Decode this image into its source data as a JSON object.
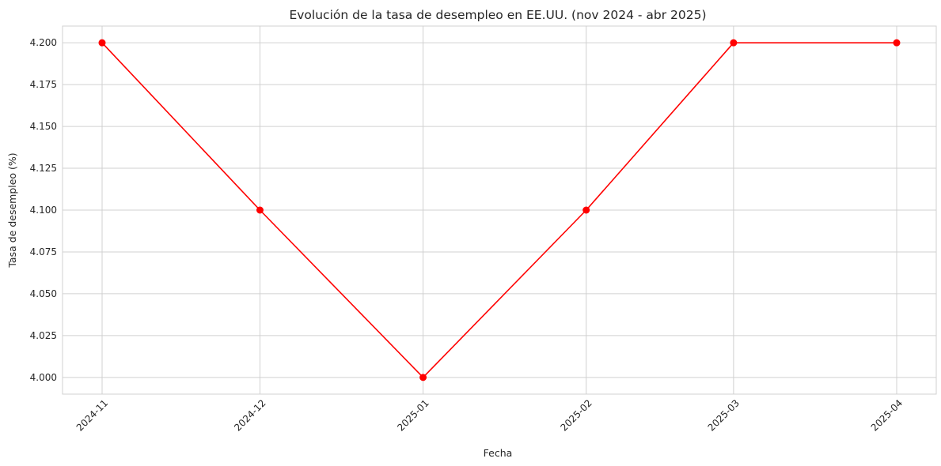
{
  "chart_data": {
    "type": "line",
    "title": "Evolución de la tasa de desempleo en EE.UU. (nov 2024 - abr 2025)",
    "xlabel": "Fecha",
    "ylabel": "Tasa de desempleo (%)",
    "x": [
      "2024-11-01",
      "2024-12-01",
      "2025-01-01",
      "2025-02-01",
      "2025-03-01",
      "2025-04-01"
    ],
    "x_tick_labels": [
      "2024-11",
      "2024-12",
      "2025-01",
      "2025-02",
      "2025-03",
      "2025-04"
    ],
    "y_ticks": [
      "4.000",
      "4.025",
      "4.050",
      "4.075",
      "4.100",
      "4.125",
      "4.150",
      "4.175",
      "4.200"
    ],
    "ylim": [
      3.99,
      4.21
    ],
    "grid": true,
    "series": [
      {
        "values": [
          4.2,
          4.1,
          4.0,
          4.1,
          4.2,
          4.2
        ],
        "color": "#ff0000",
        "marker": "circle"
      }
    ]
  }
}
